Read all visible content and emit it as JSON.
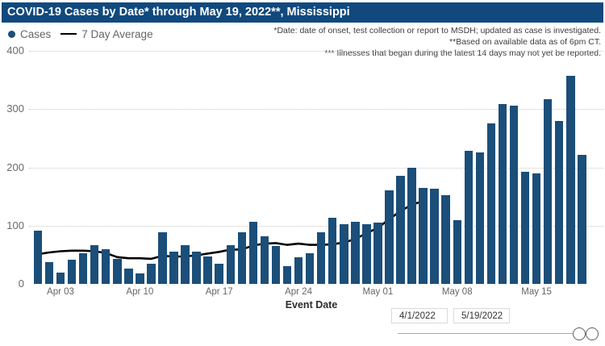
{
  "title_bar": {
    "text": "COVID-19 Cases by Date* through May 19, 2022**, Mississippi"
  },
  "legend": {
    "cases": "Cases",
    "average": "7 Day Average"
  },
  "annotations": {
    "line1": "*Date: date of onset, test collection or report to MSDH; updated as case is investigated.",
    "line2": "**Based on available data as of 6pm CT.",
    "line3": "*** Illnesses that began during the latest 14 days may not yet be reported."
  },
  "axis": {
    "xlabel": "Event Date"
  },
  "filters": {
    "start": "4/1/2022",
    "end": "5/19/2022"
  },
  "colors": {
    "title_bar": "#11497E",
    "bar": "#1B4E79",
    "average_line": "#000000",
    "axis_text": "#666666",
    "gridline": "#c9c9c9"
  },
  "chart_data": {
    "type": "bar",
    "title": "COVID-19 Cases by Date* through May 19, 2022**, Mississippi",
    "xlabel": "Event Date",
    "ylabel": "Cases",
    "ylim": [
      0,
      400
    ],
    "yticks": [
      0,
      100,
      200,
      300,
      400
    ],
    "grid": "horizontal-dotted",
    "legend_position": "top-left",
    "xticks": [
      {
        "index": 2,
        "label": "Apr 03"
      },
      {
        "index": 9,
        "label": "Apr 10"
      },
      {
        "index": 16,
        "label": "Apr 17"
      },
      {
        "index": 23,
        "label": "Apr 24"
      },
      {
        "index": 30,
        "label": "May 01"
      },
      {
        "index": 37,
        "label": "May 08"
      },
      {
        "index": 44,
        "label": "May 15"
      }
    ],
    "categories": [
      "Apr 1",
      "Apr 2",
      "Apr 3",
      "Apr 4",
      "Apr 5",
      "Apr 6",
      "Apr 7",
      "Apr 8",
      "Apr 9",
      "Apr 10",
      "Apr 11",
      "Apr 12",
      "Apr 13",
      "Apr 14",
      "Apr 15",
      "Apr 16",
      "Apr 17",
      "Apr 18",
      "Apr 19",
      "Apr 20",
      "Apr 21",
      "Apr 22",
      "Apr 23",
      "Apr 24",
      "Apr 25",
      "Apr 26",
      "Apr 27",
      "Apr 28",
      "Apr 29",
      "Apr 30",
      "May 1",
      "May 2",
      "May 3",
      "May 4",
      "May 5",
      "May 6",
      "May 7",
      "May 8",
      "May 9",
      "May 10",
      "May 11",
      "May 12",
      "May 13",
      "May 14",
      "May 15",
      "May 16",
      "May 17",
      "May 18",
      "May 19"
    ],
    "series": [
      {
        "name": "Cases",
        "type": "bar",
        "color": "#1B4E79",
        "values": [
          92,
          38,
          19,
          42,
          52,
          66,
          60,
          43,
          26,
          18,
          35,
          88,
          55,
          66,
          56,
          47,
          35,
          66,
          88,
          107,
          81,
          65,
          30,
          46,
          52,
          88,
          113,
          103,
          107,
          103,
          105,
          160,
          185,
          200,
          165,
          163,
          152,
          110,
          229,
          225,
          276,
          308,
          306,
          192,
          190,
          317,
          279,
          357,
          222
        ]
      },
      {
        "name": "7 Day Average",
        "type": "line",
        "color": "#000000",
        "values": [
          51,
          54,
          56,
          57,
          57,
          56,
          53,
          46,
          44,
          44,
          43,
          48,
          47,
          47,
          49,
          52,
          55,
          59,
          59,
          66,
          69,
          70,
          67,
          69,
          67,
          67,
          68,
          71,
          77,
          87,
          96,
          111,
          125,
          136,
          142,
          null,
          null,
          null,
          null,
          null,
          null,
          null,
          null,
          null,
          null,
          null,
          null,
          null,
          null
        ]
      }
    ]
  }
}
